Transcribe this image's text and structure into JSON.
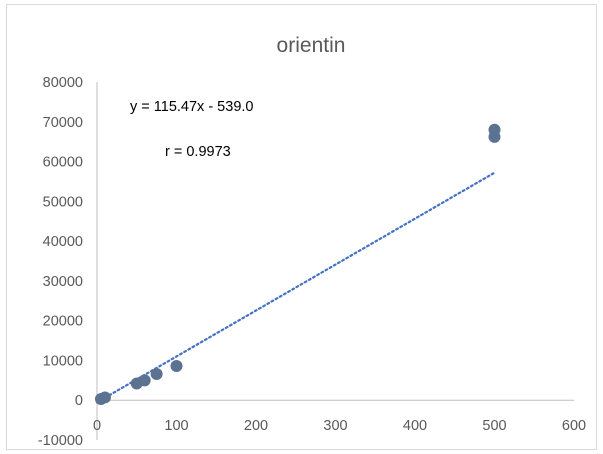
{
  "chart_data": {
    "type": "scatter",
    "title": "orientin",
    "xlabel": "",
    "ylabel": "",
    "xlim": [
      0,
      600
    ],
    "ylim": [
      -10000,
      80000
    ],
    "x_ticks": [
      "0",
      "100",
      "200",
      "300",
      "400",
      "500",
      "600"
    ],
    "y_ticks": [
      "-10000",
      "0",
      "10000",
      "20000",
      "30000",
      "40000",
      "50000",
      "60000",
      "70000",
      "80000"
    ],
    "grid": false,
    "legend": "none",
    "series": [
      {
        "points": [
          {
            "x": 5,
            "y": 300
          },
          {
            "x": 10,
            "y": 700
          },
          {
            "x": 50,
            "y": 4200
          },
          {
            "x": 60,
            "y": 5000
          },
          {
            "x": 75,
            "y": 6600
          },
          {
            "x": 100,
            "y": 8600
          },
          {
            "x": 500,
            "y": 66200
          },
          {
            "x": 500,
            "y": 68000
          }
        ],
        "color": "#5b7391"
      }
    ],
    "trendline": {
      "style": "dotted",
      "color": "#4472c4",
      "slope": 115.47,
      "intercept": -539.0,
      "x_range": [
        0,
        500
      ]
    },
    "annotations": {
      "equation": "y = 115.47x - 539.0",
      "r": "r = 0.9973"
    }
  }
}
